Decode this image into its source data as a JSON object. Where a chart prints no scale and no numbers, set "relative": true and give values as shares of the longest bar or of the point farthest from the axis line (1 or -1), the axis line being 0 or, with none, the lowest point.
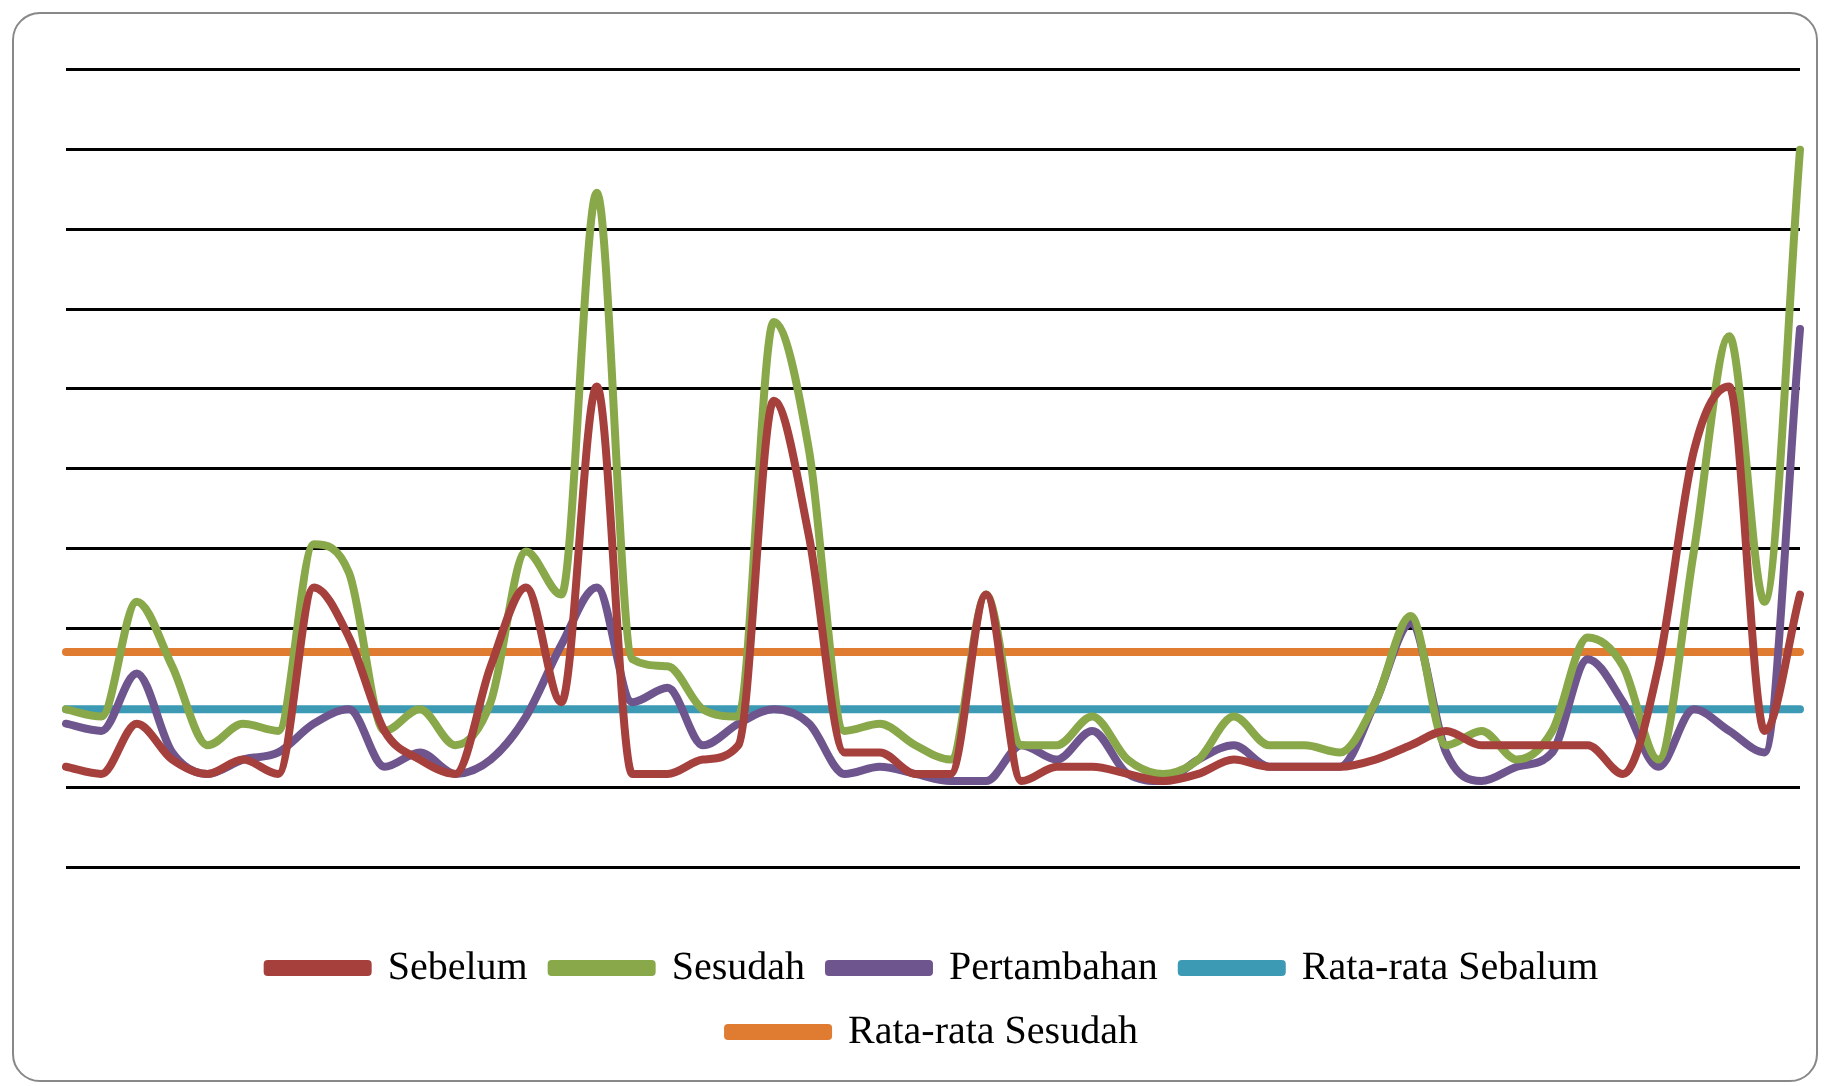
{
  "chart_data": {
    "type": "line",
    "relative": true,
    "grid": "y",
    "legend": "bottom",
    "marker": "none",
    "line_style": "solid",
    "categories": [
      null,
      null,
      null,
      null,
      null,
      null,
      null,
      null,
      null,
      null,
      null,
      null,
      null,
      null,
      null,
      null,
      null,
      null,
      null,
      null,
      null,
      null,
      null,
      null,
      null,
      null,
      null,
      null,
      null,
      null,
      null,
      null,
      null,
      null,
      null,
      null,
      null,
      null,
      null,
      null,
      null,
      null,
      null,
      null,
      null,
      null,
      null,
      null,
      null,
      null
    ],
    "series": [
      {
        "name": "Sebelum",
        "color": "#a5403d",
        "values": [
          0.14,
          0.13,
          0.2,
          0.15,
          0.13,
          0.15,
          0.13,
          0.39,
          0.32,
          0.19,
          0.15,
          0.13,
          0.28,
          0.39,
          0.23,
          0.67,
          0.13,
          0.13,
          0.15,
          0.17,
          0.65,
          0.46,
          0.16,
          0.16,
          0.13,
          0.13,
          0.38,
          0.12,
          0.14,
          0.14,
          0.13,
          0.12,
          0.13,
          0.15,
          0.14,
          0.14,
          0.14,
          0.15,
          0.17,
          0.19,
          0.17,
          0.17,
          0.17,
          0.17,
          0.13,
          0.28,
          0.58,
          0.67,
          0.19,
          0.38
        ]
      },
      {
        "name": "Sesudah",
        "color": "#89a84a",
        "values": [
          0.22,
          0.21,
          0.37,
          0.28,
          0.17,
          0.2,
          0.19,
          0.45,
          0.41,
          0.19,
          0.22,
          0.17,
          0.23,
          0.44,
          0.38,
          0.94,
          0.29,
          0.28,
          0.22,
          0.21,
          0.76,
          0.58,
          0.19,
          0.2,
          0.17,
          0.15,
          0.38,
          0.17,
          0.17,
          0.21,
          0.15,
          0.13,
          0.15,
          0.21,
          0.17,
          0.17,
          0.16,
          0.23,
          0.35,
          0.17,
          0.19,
          0.15,
          0.19,
          0.32,
          0.28,
          0.15,
          0.44,
          0.74,
          0.37,
          1
        ]
      },
      {
        "name": "Pertambahan",
        "color": "#6e558e",
        "values": [
          0.2,
          0.19,
          0.27,
          0.16,
          0.13,
          0.15,
          0.16,
          0.2,
          0.22,
          0.14,
          0.16,
          0.13,
          0.15,
          0.21,
          0.31,
          0.39,
          0.23,
          0.25,
          0.17,
          0.2,
          0.22,
          0.2,
          0.13,
          0.14,
          0.13,
          0.12,
          0.12,
          0.17,
          0.15,
          0.19,
          0.13,
          0.12,
          0.15,
          0.17,
          0.14,
          0.14,
          0.14,
          0.23,
          0.34,
          0.16,
          0.12,
          0.14,
          0.16,
          0.29,
          0.23,
          0.14,
          0.22,
          0.19,
          0.16,
          0.75
        ]
      },
      {
        "name": "Rata-rata Sebalum",
        "color": "#3d9ab5",
        "values": [
          0.22,
          0.22,
          0.22,
          0.22,
          0.22,
          0.22,
          0.22,
          0.22,
          0.22,
          0.22,
          0.22,
          0.22,
          0.22,
          0.22,
          0.22,
          0.22,
          0.22,
          0.22,
          0.22,
          0.22,
          0.22,
          0.22,
          0.22,
          0.22,
          0.22,
          0.22,
          0.22,
          0.22,
          0.22,
          0.22,
          0.22,
          0.22,
          0.22,
          0.22,
          0.22,
          0.22,
          0.22,
          0.22,
          0.22,
          0.22,
          0.22,
          0.22,
          0.22,
          0.22,
          0.22,
          0.22,
          0.22,
          0.22,
          0.22,
          0.22
        ]
      },
      {
        "name": "Rata-rata Sesudah",
        "color": "#e07c31",
        "values": [
          0.3,
          0.3,
          0.3,
          0.3,
          0.3,
          0.3,
          0.3,
          0.3,
          0.3,
          0.3,
          0.3,
          0.3,
          0.3,
          0.3,
          0.3,
          0.3,
          0.3,
          0.3,
          0.3,
          0.3,
          0.3,
          0.3,
          0.3,
          0.3,
          0.3,
          0.3,
          0.3,
          0.3,
          0.3,
          0.3,
          0.3,
          0.3,
          0.3,
          0.3,
          0.3,
          0.3,
          0.3,
          0.3,
          0.3,
          0.3,
          0.3,
          0.3,
          0.3,
          0.3,
          0.3,
          0.3,
          0.3,
          0.3,
          0.3,
          0.3
        ]
      }
    ]
  }
}
